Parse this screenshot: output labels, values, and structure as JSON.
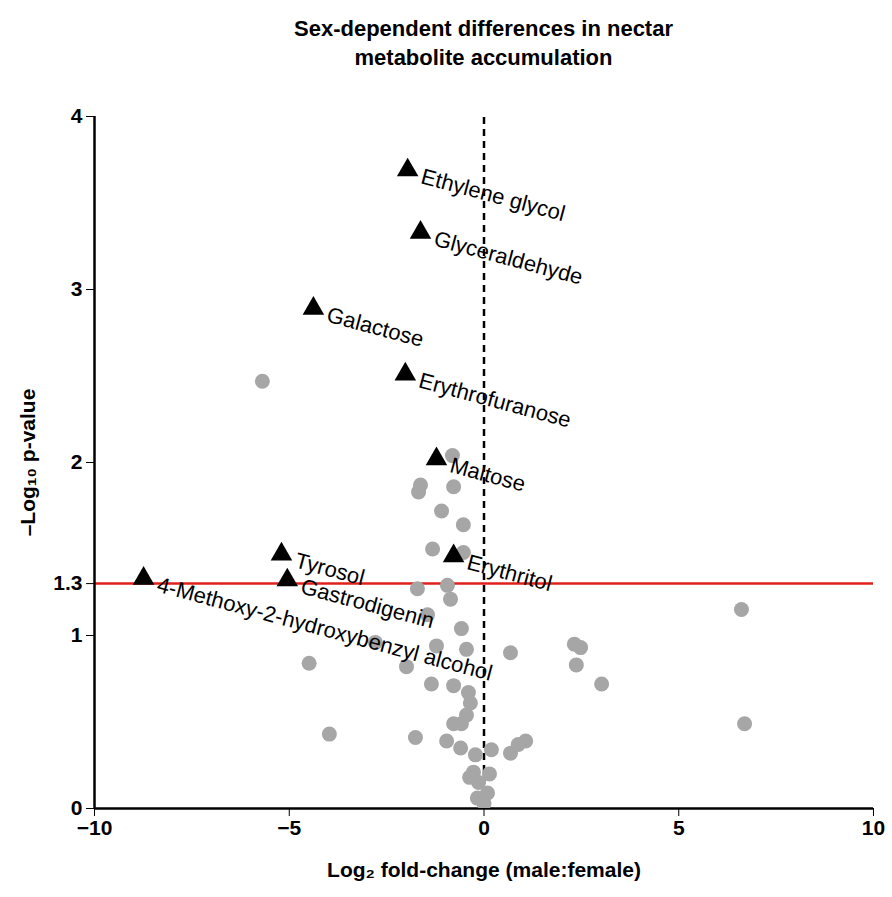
{
  "chart_data": {
    "type": "scatter",
    "title": "Sex-dependent differences in nectar metabolite accumulation",
    "x_label": "Log₂ fold-change (male:female)",
    "y_label": "–Log₁₀ p-value",
    "xlim": [
      -10,
      10
    ],
    "xticks": [
      -10,
      -5,
      0,
      5,
      10
    ],
    "ylim": [
      0,
      4
    ],
    "yticks": [
      0,
      1,
      1.3,
      2,
      3,
      4
    ],
    "grid": false,
    "threshold": {
      "y": 1.3,
      "color": "#e0201b"
    },
    "zero_line": {
      "x": 0,
      "line_style": "dashed",
      "color": "#000000"
    },
    "series": [
      {
        "marker": "circle",
        "color": "#a6a6a6",
        "x": [
          -5.69,
          -0.81,
          -1.63,
          -1.68,
          -0.78,
          -1.09,
          -0.53,
          -1.32,
          -0.53,
          -1.71,
          -0.94,
          -0.86,
          -1.45,
          -0.58,
          -1.22,
          -0.45,
          -2.79,
          -1.99,
          -1.35,
          -0.78,
          -0.4,
          0.68,
          2.32,
          2.48,
          2.37,
          3.02,
          6.61,
          6.69,
          -4.49,
          -3.97,
          -1.76,
          -0.96,
          -0.58,
          -0.45,
          -0.35,
          -0.6,
          -0.22,
          0.19,
          0.68,
          0.88,
          1.07,
          -0.27,
          -0.14,
          0.09,
          0.0,
          -0.17,
          -0.37,
          0.14,
          -0.78
        ],
        "y": [
          2.47,
          2.04,
          1.87,
          1.83,
          1.86,
          1.72,
          1.64,
          1.5,
          1.48,
          1.27,
          1.29,
          1.21,
          1.12,
          1.04,
          0.94,
          0.92,
          0.96,
          0.82,
          0.72,
          0.71,
          0.67,
          0.9,
          0.95,
          0.93,
          0.83,
          0.72,
          1.15,
          0.49,
          0.84,
          0.43,
          0.41,
          0.39,
          0.49,
          0.54,
          0.61,
          0.35,
          0.31,
          0.34,
          0.32,
          0.37,
          0.39,
          0.21,
          0.15,
          0.09,
          0.03,
          0.06,
          0.18,
          0.2,
          0.49
        ]
      },
      {
        "marker": "triangle",
        "color": "#000000",
        "x": [
          -1.96,
          -1.63,
          -4.38,
          -2.02,
          -1.22,
          -5.2,
          -0.78,
          -5.05,
          -8.74
        ],
        "y": [
          3.69,
          3.33,
          2.89,
          2.51,
          2.02,
          1.47,
          1.46,
          1.32,
          1.33
        ],
        "labels": [
          "Ethylene glycol",
          "Glyceraldehyde",
          "Galactose",
          "Erythrofuranose",
          "Maltose",
          "Tyrosol",
          "Erythritol",
          "Gastrodigenin",
          "4-Methoxy-2-hydroxybenzyl alcohol"
        ]
      }
    ]
  }
}
